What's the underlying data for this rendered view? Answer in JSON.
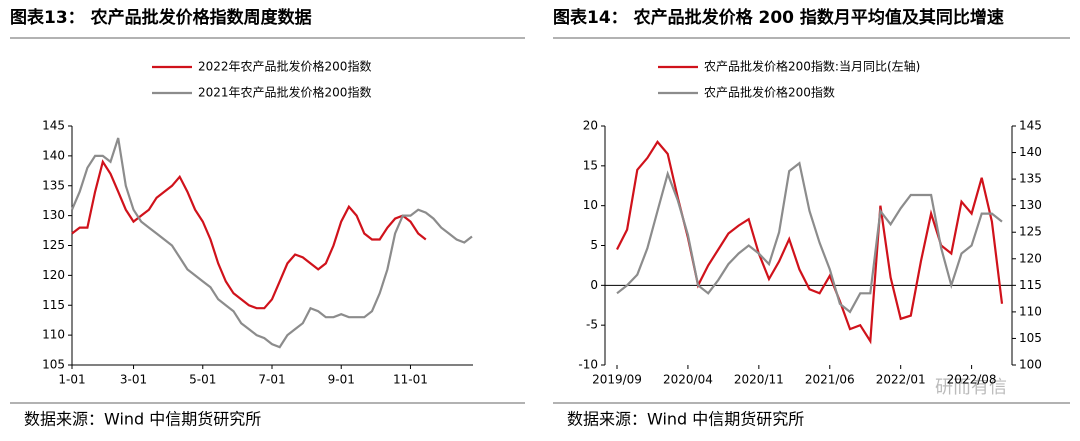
{
  "watermark": "研而有信",
  "chart_data": [
    {
      "type": "line",
      "title": "图表13： 农产品批发价格指数周度数据",
      "source": "数据来源：Wind 中信期货研究所",
      "categories": [
        "1-01",
        null,
        null,
        null,
        null,
        null,
        null,
        null,
        "3-01",
        null,
        null,
        null,
        null,
        null,
        null,
        null,
        null,
        "5-01",
        null,
        null,
        null,
        null,
        null,
        null,
        null,
        null,
        "7-01",
        null,
        null,
        null,
        null,
        null,
        null,
        null,
        null,
        "9-01",
        null,
        null,
        null,
        null,
        null,
        null,
        null,
        null,
        "11-01",
        null,
        null,
        null,
        null,
        null,
        null,
        null,
        null
      ],
      "series": [
        {
          "name": "2022年农产品批发价格200指数",
          "color": "#d0121b",
          "values": [
            127,
            128,
            128,
            134,
            139,
            137,
            134,
            131,
            129,
            130,
            131,
            133,
            134,
            135,
            136.5,
            134,
            131,
            129,
            126,
            122,
            119,
            117,
            116,
            115,
            114.5,
            114.5,
            116,
            119,
            122,
            123.5,
            123,
            122,
            121,
            122,
            125,
            129,
            131.5,
            130,
            127,
            126,
            126,
            128,
            129.5,
            130,
            129,
            127,
            126,
            null,
            null,
            null,
            null,
            null,
            null
          ]
        },
        {
          "name": "2021年农产品批发价格200指数",
          "color": "#8c8c8c",
          "values": [
            131,
            134,
            138,
            140,
            140,
            139,
            143,
            135,
            131,
            129,
            128,
            127,
            126,
            125,
            123,
            121,
            120,
            119,
            118,
            116,
            115,
            114,
            112,
            111,
            110,
            109.5,
            108.5,
            108,
            110,
            111,
            112,
            114.5,
            114,
            113,
            113,
            113.5,
            113,
            113,
            113,
            114,
            117,
            121,
            127,
            130,
            130,
            131,
            130.5,
            129.5,
            128,
            127,
            126,
            125.5,
            126.5
          ]
        }
      ],
      "ylim": [
        105,
        145
      ],
      "yticks": [
        105,
        110,
        115,
        120,
        125,
        130,
        135,
        140,
        145
      ]
    },
    {
      "type": "line",
      "title": "图表14： 农产品批发价格 200 指数月平均值及其同比增速",
      "source": "数据来源：Wind 中信期货研究所",
      "categories": [
        "2019/09",
        null,
        null,
        null,
        null,
        null,
        null,
        "2020/04",
        null,
        null,
        null,
        null,
        null,
        null,
        "2020/11",
        null,
        null,
        null,
        null,
        null,
        null,
        "2021/06",
        null,
        null,
        null,
        null,
        null,
        null,
        "2022/01",
        null,
        null,
        null,
        null,
        null,
        null,
        "2022/08",
        null,
        null,
        null
      ],
      "series": [
        {
          "name": "农产品批发价格200指数:当月同比(左轴)",
          "color": "#d0121b",
          "axis": "y",
          "values": [
            4.5,
            7,
            14.5,
            16,
            18,
            16.5,
            11,
            6,
            0,
            2.5,
            4.5,
            6.5,
            7.5,
            8.3,
            4,
            0.8,
            3,
            5.8,
            2,
            -0.5,
            -1,
            1.2,
            -2,
            -5.5,
            -5,
            -7,
            10,
            1,
            -4.2,
            -3.8,
            3,
            9,
            5,
            4,
            10.5,
            9,
            13.5,
            8,
            -2.3
          ]
        },
        {
          "name": "农产品批发价格200指数",
          "color": "#8c8c8c",
          "axis": "y2",
          "values": [
            113.5,
            115,
            117,
            122,
            129,
            136,
            131,
            124.5,
            115,
            113.5,
            116,
            119,
            121,
            122.5,
            121,
            119,
            125,
            136.5,
            138,
            129,
            123,
            118,
            111.5,
            110,
            113.5,
            113.5,
            129,
            126.5,
            129.5,
            132,
            132,
            132,
            122,
            115,
            121,
            122.5,
            128.5,
            128.5,
            127
          ]
        }
      ],
      "ylim": [
        -10,
        20
      ],
      "yticks": [
        -10,
        -5,
        0,
        5,
        10,
        15,
        20
      ],
      "y2lim": [
        100,
        145
      ],
      "y2ticks": [
        100,
        105,
        110,
        115,
        120,
        125,
        130,
        135,
        140,
        145
      ],
      "zero_line": true
    }
  ]
}
